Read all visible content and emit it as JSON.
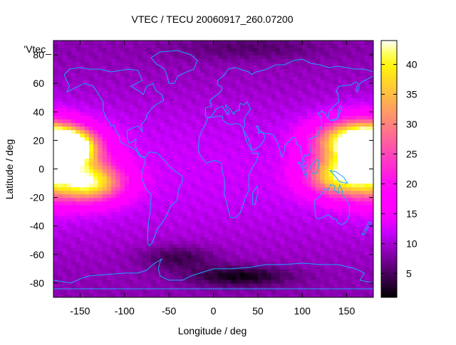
{
  "chart_data": {
    "type": "heatmap",
    "title": "VTEC / TECU 20060917_260.07200",
    "xlabel": "Longitude / deg",
    "ylabel": "Latitude / deg",
    "key_label": "'Vtec_",
    "xlim": [
      -180,
      180
    ],
    "ylim": [
      -90,
      90
    ],
    "x_ticks": [
      -150,
      -100,
      -50,
      0,
      50,
      100,
      150
    ],
    "y_ticks": [
      -80,
      -60,
      -40,
      -20,
      0,
      20,
      40,
      60,
      80
    ],
    "colorbar": {
      "range": [
        1,
        44
      ],
      "ticks": [
        5,
        10,
        15,
        20,
        25,
        30,
        35,
        40
      ]
    },
    "grid": {
      "lon_step": 5,
      "lat_step": 2.5
    },
    "hotspots": [
      {
        "lon": -165,
        "lat": 16,
        "dlon": 20,
        "dlat": 8,
        "value": 40
      },
      {
        "lon": -140,
        "lat": -10,
        "dlon": 28,
        "dlat": 9,
        "value": 24
      },
      {
        "lon": -155,
        "lat": 5,
        "dlon": 30,
        "dlat": 16,
        "value": 14
      },
      {
        "lon": 155,
        "lat": 20,
        "dlon": 30,
        "dlat": 10,
        "value": 30
      },
      {
        "lon": 140,
        "lat": -5,
        "dlon": 26,
        "dlat": 10,
        "value": 26
      },
      {
        "lon": 170,
        "lat": 5,
        "dlon": 20,
        "dlat": 18,
        "value": 14
      },
      {
        "lon": 30,
        "lat": -75,
        "dlon": 40,
        "dlat": 5,
        "value": -7
      },
      {
        "lon": -40,
        "lat": -62,
        "dlon": 30,
        "dlat": 6,
        "value": -5
      },
      {
        "lon": 40,
        "lat": 85,
        "dlon": 60,
        "dlat": 6,
        "value": -3
      }
    ],
    "coastlines": [
      [
        [
          -168,
          66
        ],
        [
          -162,
          70
        ],
        [
          -150,
          71
        ],
        [
          -140,
          70
        ],
        [
          -128,
          70
        ],
        [
          -115,
          68
        ],
        [
          -95,
          70
        ],
        [
          -85,
          69
        ],
        [
          -80,
          62
        ],
        [
          -93,
          58
        ],
        [
          -82,
          54
        ],
        [
          -79,
          52
        ],
        [
          -75,
          58
        ],
        [
          -68,
          60
        ],
        [
          -65,
          55
        ],
        [
          -58,
          52
        ],
        [
          -56,
          48
        ],
        [
          -65,
          45
        ],
        [
          -70,
          42
        ],
        [
          -75,
          38
        ],
        [
          -76,
          35
        ],
        [
          -81,
          31
        ],
        [
          -80,
          26
        ],
        [
          -82,
          28
        ],
        [
          -84,
          30
        ],
        [
          -90,
          29
        ],
        [
          -97,
          27
        ],
        [
          -97,
          22
        ],
        [
          -95,
          18
        ],
        [
          -91,
          19
        ],
        [
          -87,
          21
        ],
        [
          -88,
          16
        ],
        [
          -84,
          11
        ],
        [
          -80,
          8
        ],
        [
          -77,
          8
        ],
        [
          -79,
          9
        ],
        [
          -83,
          9
        ],
        [
          -87,
          13
        ],
        [
          -92,
          15
        ],
        [
          -96,
          16
        ],
        [
          -105,
          19
        ],
        [
          -106,
          23
        ],
        [
          -110,
          27
        ],
        [
          -112,
          31
        ],
        [
          -115,
          30
        ],
        [
          -117,
          33
        ],
        [
          -121,
          36
        ],
        [
          -124,
          41
        ],
        [
          -124,
          47
        ],
        [
          -128,
          51
        ],
        [
          -135,
          58
        ],
        [
          -145,
          60
        ],
        [
          -152,
          58
        ],
        [
          -158,
          56
        ],
        [
          -165,
          54
        ],
        [
          -162,
          58
        ],
        [
          -165,
          62
        ],
        [
          -168,
          66
        ]
      ],
      [
        [
          -77,
          8
        ],
        [
          -72,
          12
        ],
        [
          -63,
          11
        ],
        [
          -55,
          6
        ],
        [
          -50,
          2
        ],
        [
          -42,
          -2
        ],
        [
          -35,
          -5
        ],
        [
          -35,
          -9
        ],
        [
          -39,
          -14
        ],
        [
          -41,
          -22
        ],
        [
          -48,
          -26
        ],
        [
          -53,
          -33
        ],
        [
          -58,
          -38
        ],
        [
          -63,
          -42
        ],
        [
          -66,
          -47
        ],
        [
          -69,
          -52
        ],
        [
          -72,
          -54
        ],
        [
          -74,
          -52
        ],
        [
          -74,
          -45
        ],
        [
          -73,
          -37
        ],
        [
          -71,
          -30
        ],
        [
          -70,
          -18
        ],
        [
          -76,
          -14
        ],
        [
          -81,
          -6
        ],
        [
          -80,
          -1
        ],
        [
          -77,
          4
        ],
        [
          -77,
          8
        ]
      ],
      [
        [
          -50,
          60
        ],
        [
          -44,
          60
        ],
        [
          -40,
          65
        ],
        [
          -30,
          68
        ],
        [
          -22,
          70
        ],
        [
          -18,
          76
        ],
        [
          -25,
          80
        ],
        [
          -40,
          83
        ],
        [
          -60,
          82
        ],
        [
          -70,
          78
        ],
        [
          -65,
          74
        ],
        [
          -55,
          70
        ],
        [
          -52,
          65
        ],
        [
          -50,
          60
        ]
      ],
      [
        [
          -17,
          15
        ],
        [
          -16,
          11
        ],
        [
          -13,
          8
        ],
        [
          -8,
          4
        ],
        [
          -4,
          5
        ],
        [
          2,
          6
        ],
        [
          9,
          4
        ],
        [
          10,
          -2
        ],
        [
          12,
          -6
        ],
        [
          13,
          -12
        ],
        [
          12,
          -17
        ],
        [
          14,
          -22
        ],
        [
          17,
          -29
        ],
        [
          19,
          -34
        ],
        [
          25,
          -34
        ],
        [
          30,
          -31
        ],
        [
          33,
          -26
        ],
        [
          36,
          -20
        ],
        [
          40,
          -15
        ],
        [
          40,
          -10
        ],
        [
          40,
          -4
        ],
        [
          43,
          0
        ],
        [
          48,
          5
        ],
        [
          51,
          11
        ],
        [
          44,
          11
        ],
        [
          42,
          14
        ],
        [
          38,
          18
        ],
        [
          35,
          24
        ],
        [
          33,
          29
        ],
        [
          30,
          31
        ],
        [
          25,
          32
        ],
        [
          20,
          31
        ],
        [
          15,
          32
        ],
        [
          11,
          34
        ],
        [
          10,
          37
        ],
        [
          3,
          37
        ],
        [
          -2,
          36
        ],
        [
          -6,
          36
        ],
        [
          -10,
          30
        ],
        [
          -13,
          27
        ],
        [
          -16,
          22
        ],
        [
          -17,
          15
        ]
      ],
      [
        [
          44,
          -25
        ],
        [
          47,
          -25
        ],
        [
          50,
          -16
        ],
        [
          49,
          -12
        ],
        [
          44,
          -17
        ],
        [
          44,
          -25
        ]
      ],
      [
        [
          -9,
          37
        ],
        [
          -9,
          43
        ],
        [
          -2,
          44
        ],
        [
          -4,
          48
        ],
        [
          2,
          51
        ],
        [
          8,
          54
        ],
        [
          10,
          57
        ],
        [
          5,
          59
        ],
        [
          5,
          62
        ],
        [
          12,
          66
        ],
        [
          17,
          70
        ],
        [
          25,
          71
        ],
        [
          30,
          70
        ],
        [
          40,
          68
        ],
        [
          43,
          66
        ],
        [
          48,
          68
        ],
        [
          55,
          69
        ],
        [
          60,
          70
        ],
        [
          70,
          73
        ],
        [
          80,
          73
        ],
        [
          90,
          76
        ],
        [
          100,
          77
        ],
        [
          110,
          74
        ],
        [
          120,
          73
        ],
        [
          130,
          71
        ],
        [
          140,
          72
        ],
        [
          150,
          71
        ],
        [
          160,
          70
        ],
        [
          170,
          70
        ],
        [
          180,
          68
        ]
      ],
      [
        [
          -9,
          37
        ],
        [
          -6,
          36
        ],
        [
          -2,
          37
        ],
        [
          3,
          42
        ],
        [
          6,
          43
        ],
        [
          10,
          44
        ],
        [
          12,
          42
        ],
        [
          16,
          38
        ],
        [
          18,
          40
        ],
        [
          14,
          43
        ],
        [
          14,
          45
        ],
        [
          19,
          42
        ],
        [
          23,
          38
        ],
        [
          24,
          40
        ],
        [
          27,
          41
        ],
        [
          29,
          41
        ],
        [
          30,
          46
        ],
        [
          34,
          45
        ],
        [
          38,
          47
        ],
        [
          42,
          42
        ],
        [
          36,
          37
        ],
        [
          35,
          33
        ],
        [
          35,
          30
        ],
        [
          33,
          28
        ],
        [
          39,
          22
        ],
        [
          43,
          14
        ],
        [
          45,
          13
        ],
        [
          52,
          16
        ],
        [
          57,
          20
        ],
        [
          58,
          23
        ],
        [
          55,
          26
        ],
        [
          50,
          25
        ],
        [
          51,
          30
        ],
        [
          48,
          30
        ],
        [
          52,
          27
        ],
        [
          57,
          25
        ],
        [
          62,
          25
        ],
        [
          67,
          24
        ],
        [
          70,
          21
        ],
        [
          73,
          17
        ],
        [
          77,
          8
        ],
        [
          80,
          13
        ],
        [
          80,
          16
        ],
        [
          86,
          20
        ],
        [
          89,
          22
        ],
        [
          92,
          22
        ],
        [
          94,
          17
        ],
        [
          98,
          16
        ],
        [
          99,
          10
        ],
        [
          101,
          3
        ],
        [
          104,
          1
        ],
        [
          104,
          4
        ],
        [
          101,
          7
        ],
        [
          103,
          10
        ],
        [
          106,
          9
        ],
        [
          109,
          12
        ],
        [
          108,
          21
        ],
        [
          112,
          22
        ],
        [
          117,
          23
        ],
        [
          120,
          28
        ],
        [
          122,
          31
        ],
        [
          121,
          37
        ],
        [
          117,
          39
        ],
        [
          122,
          40
        ],
        [
          121,
          41
        ],
        [
          126,
          39
        ],
        [
          129,
          35
        ],
        [
          130,
          40
        ],
        [
          134,
          43
        ],
        [
          141,
          47
        ],
        [
          140,
          53
        ],
        [
          138,
          54
        ],
        [
          141,
          58
        ],
        [
          155,
          59
        ],
        [
          160,
          61
        ],
        [
          163,
          60
        ],
        [
          160,
          55
        ],
        [
          162,
          54
        ],
        [
          165,
          60
        ],
        [
          170,
          62
        ],
        [
          180,
          65
        ]
      ],
      [
        [
          95,
          5
        ],
        [
          98,
          4
        ],
        [
          104,
          -2
        ],
        [
          106,
          -6
        ],
        [
          104,
          -6
        ],
        [
          100,
          0
        ],
        [
          95,
          5
        ]
      ],
      [
        [
          109,
          2
        ],
        [
          111,
          3
        ],
        [
          117,
          7
        ],
        [
          119,
          5
        ],
        [
          118,
          1
        ],
        [
          116,
          -3
        ],
        [
          111,
          -3
        ],
        [
          109,
          2
        ]
      ],
      [
        [
          131,
          -1
        ],
        [
          138,
          -2
        ],
        [
          147,
          -6
        ],
        [
          151,
          -10
        ],
        [
          142,
          -9
        ],
        [
          137,
          -5
        ],
        [
          131,
          -1
        ]
      ],
      [
        [
          131,
          34
        ],
        [
          136,
          35
        ],
        [
          140,
          36
        ],
        [
          141,
          41
        ],
        [
          142,
          44
        ],
        [
          145,
          43
        ],
        [
          141,
          38
        ],
        [
          140,
          35
        ],
        [
          136,
          34
        ],
        [
          131,
          34
        ]
      ],
      [
        [
          114,
          -22
        ],
        [
          114,
          -26
        ],
        [
          115,
          -34
        ],
        [
          118,
          -35
        ],
        [
          123,
          -34
        ],
        [
          129,
          -32
        ],
        [
          135,
          -35
        ],
        [
          138,
          -35
        ],
        [
          140,
          -38
        ],
        [
          145,
          -39
        ],
        [
          150,
          -37
        ],
        [
          153,
          -32
        ],
        [
          153,
          -26
        ],
        [
          150,
          -22
        ],
        [
          146,
          -19
        ],
        [
          145,
          -15
        ],
        [
          142,
          -11
        ],
        [
          141,
          -14
        ],
        [
          141,
          -17
        ],
        [
          136,
          -15
        ],
        [
          137,
          -12
        ],
        [
          132,
          -11
        ],
        [
          129,
          -15
        ],
        [
          125,
          -14
        ],
        [
          122,
          -18
        ],
        [
          114,
          -22
        ]
      ],
      [
        [
          167,
          -46
        ],
        [
          172,
          -41
        ],
        [
          175,
          -37
        ],
        [
          178,
          -38
        ],
        [
          174,
          -41
        ],
        [
          170,
          -46
        ],
        [
          167,
          -46
        ]
      ],
      [
        [
          -180,
          -78
        ],
        [
          -160,
          -80
        ],
        [
          -150,
          -77
        ],
        [
          -140,
          -75
        ],
        [
          -120,
          -74
        ],
        [
          -100,
          -73
        ],
        [
          -85,
          -73
        ],
        [
          -75,
          -71
        ],
        [
          -68,
          -67
        ],
        [
          -58,
          -63
        ],
        [
          -60,
          -65
        ],
        [
          -62,
          -70
        ],
        [
          -60,
          -75
        ],
        [
          -50,
          -78
        ],
        [
          -35,
          -78
        ],
        [
          -25,
          -75
        ],
        [
          -15,
          -73
        ],
        [
          0,
          -70
        ],
        [
          20,
          -70
        ],
        [
          40,
          -69
        ],
        [
          60,
          -67
        ],
        [
          80,
          -67
        ],
        [
          100,
          -66
        ],
        [
          120,
          -67
        ],
        [
          140,
          -67
        ],
        [
          160,
          -70
        ],
        [
          170,
          -73
        ],
        [
          165,
          -78
        ],
        [
          180,
          -80
        ]
      ],
      [
        [
          -180,
          -84
        ],
        [
          180,
          -84
        ]
      ]
    ]
  }
}
